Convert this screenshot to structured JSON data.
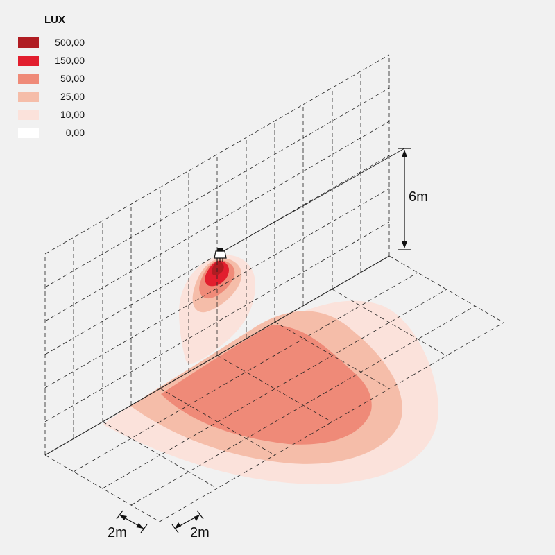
{
  "legend": {
    "title": "LUX",
    "entries": [
      {
        "value": "500,00",
        "color": "#b01c22"
      },
      {
        "value": "150,00",
        "color": "#e21e2e"
      },
      {
        "value": "50,00",
        "color": "#ef8a78"
      },
      {
        "value": "25,00",
        "color": "#f5bda9"
      },
      {
        "value": "10,00",
        "color": "#fbe2db"
      },
      {
        "value": "0,00",
        "color": "#ffffff"
      }
    ]
  },
  "dimensions": {
    "height_label": "6m",
    "grid_label_left": "2m",
    "grid_label_right": "2m"
  },
  "icons": {
    "fixture": "wall-light-fixture-icon"
  }
}
